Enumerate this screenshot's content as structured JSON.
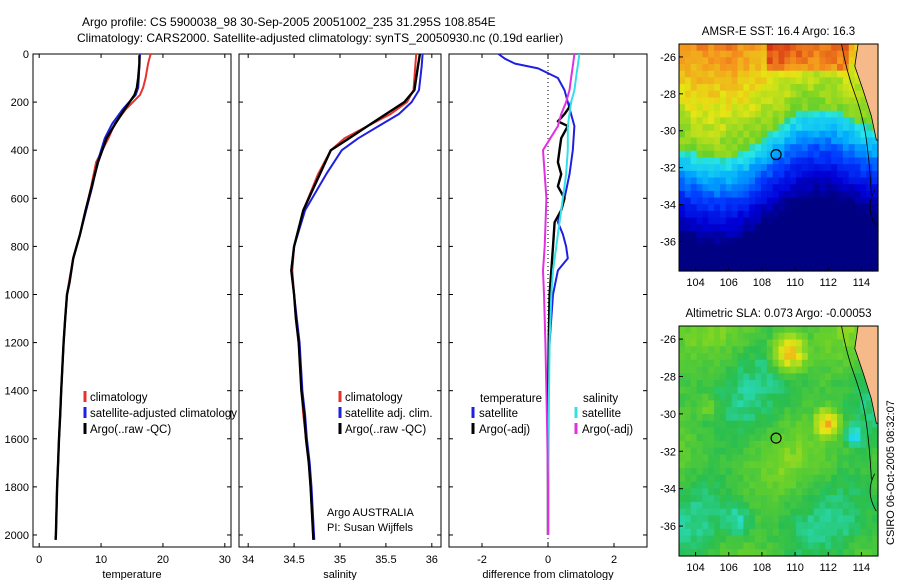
{
  "header": {
    "line1": "Argo profile: CS 5900038_98 30-Sep-2005 20051002_235 31.295S 108.854E",
    "line2": "Climatology: CARS2000. Satellite-adjusted climatology: synTS_20050930.nc (0.19d earlier)"
  },
  "side_label": "CSIRO 06-Oct-2005 08:32:07",
  "argo_info": {
    "line1": "Argo AUSTRALIA",
    "line2": "PI: Susan Wijffels"
  },
  "colors": {
    "red": "#e8322c",
    "blue": "#1f1fe0",
    "black": "#000000",
    "cyan": "#33e0e8",
    "magenta": "#e030e0"
  },
  "chart_data": [
    {
      "type": "line",
      "name": "temperature",
      "xlabel": "temperature",
      "xlim": [
        -1,
        31
      ],
      "ylim": [
        2050,
        0
      ],
      "y_inverted": true,
      "xticks": [
        "0",
        "10",
        "20",
        "30"
      ],
      "yticks": [
        "0",
        "200",
        "400",
        "600",
        "800",
        "1000",
        "1200",
        "1400",
        "1600",
        "1800",
        "2000"
      ],
      "legend": [
        "climatology",
        "satellite-adjusted climatology",
        "Argo(..raw -QC)"
      ],
      "series": [
        {
          "name": "climatology",
          "color": "red",
          "x": [
            18,
            17.6,
            17.2,
            16.8,
            16.3,
            14,
            12.2,
            11.2,
            9.2,
            8.4,
            7.5,
            6.6,
            5.5,
            4.8,
            4.5,
            4.2,
            3.95,
            3.75,
            3.55,
            3.4,
            3.2,
            3.05,
            2.9,
            2.8,
            2.75,
            2.7,
            2.65
          ],
          "y": [
            0,
            40,
            100,
            140,
            170,
            230,
            290,
            350,
            450,
            550,
            650,
            750,
            850,
            950,
            1000,
            1100,
            1200,
            1300,
            1400,
            1500,
            1600,
            1700,
            1800,
            1900,
            1950,
            2000,
            2020
          ]
        },
        {
          "name": "satellite-adjusted climatology",
          "color": "blue",
          "x": [
            16.3,
            16.2,
            16.1,
            16,
            15.6,
            13.5,
            11.8,
            10.6,
            9.4,
            8.6,
            7.6,
            6.6,
            5.5,
            4.9,
            4.5,
            4.2,
            3.95,
            3.75,
            3.55,
            3.4,
            3.2,
            3.05,
            2.9,
            2.8,
            2.75,
            2.7,
            2.65
          ],
          "y": [
            0,
            40,
            100,
            140,
            170,
            230,
            290,
            350,
            450,
            550,
            650,
            750,
            850,
            950,
            1000,
            1100,
            1200,
            1300,
            1400,
            1500,
            1600,
            1700,
            1800,
            1900,
            1950,
            2000,
            2020
          ]
        },
        {
          "name": "Argo(..raw -QC)",
          "color": "black",
          "x": [
            16.2,
            16.2,
            16,
            15.8,
            15.4,
            13.8,
            12.3,
            10.9,
            9.5,
            8.5,
            7.5,
            6.6,
            5.5,
            4.9,
            4.5,
            4.2,
            3.95,
            3.75,
            3.55,
            3.4,
            3.2,
            3.05,
            2.9,
            2.8,
            2.75,
            2.7,
            2.65
          ],
          "y": [
            5,
            40,
            100,
            140,
            170,
            230,
            290,
            350,
            450,
            550,
            650,
            750,
            850,
            950,
            1000,
            1100,
            1200,
            1300,
            1400,
            1500,
            1600,
            1700,
            1800,
            1900,
            1950,
            2000,
            2020
          ]
        }
      ]
    },
    {
      "type": "line",
      "name": "salinity",
      "xlabel": "salinity",
      "xlim": [
        33.9,
        36.1
      ],
      "ylim": [
        2050,
        0
      ],
      "y_inverted": true,
      "xticks": [
        "34",
        "34.5",
        "35",
        "35.5",
        "36"
      ],
      "legend": [
        "climatology",
        "satellite adj. clim.",
        "Argo(..raw -QC)"
      ],
      "series": [
        {
          "name": "climatology",
          "color": "red",
          "x": [
            35.83,
            35.82,
            35.8,
            35.73,
            35.55,
            35.3,
            35.05,
            34.9,
            34.76,
            34.6,
            34.5,
            34.48,
            34.5,
            34.52,
            34.55,
            34.58,
            34.6,
            34.63,
            34.66,
            34.68,
            34.7,
            34.71
          ],
          "y": [
            0,
            50,
            150,
            200,
            250,
            300,
            350,
            400,
            500,
            650,
            800,
            900,
            1000,
            1100,
            1200,
            1400,
            1500,
            1600,
            1700,
            1800,
            1950,
            2020
          ]
        },
        {
          "name": "satellite adj. clim.",
          "color": "blue",
          "x": [
            35.9,
            35.89,
            35.86,
            35.78,
            35.64,
            35.42,
            35.2,
            35.02,
            34.85,
            34.62,
            34.5,
            34.47,
            34.5,
            34.53,
            34.56,
            34.59,
            34.62,
            34.64,
            34.67,
            34.69,
            34.71,
            34.72
          ],
          "y": [
            0,
            50,
            150,
            200,
            250,
            300,
            350,
            400,
            500,
            650,
            800,
            900,
            1000,
            1100,
            1200,
            1400,
            1500,
            1600,
            1700,
            1800,
            1950,
            2020
          ]
        },
        {
          "name": "Argo(..raw -QC)",
          "color": "black",
          "x": [
            35.87,
            35.85,
            35.81,
            35.7,
            35.5,
            35.3,
            35.1,
            34.9,
            34.78,
            34.6,
            34.5,
            34.47,
            34.5,
            34.52,
            34.55,
            34.58,
            34.61,
            34.63,
            34.66,
            34.68,
            34.7,
            34.71
          ],
          "y": [
            0,
            50,
            150,
            200,
            250,
            300,
            350,
            400,
            500,
            650,
            800,
            900,
            1000,
            1100,
            1200,
            1400,
            1500,
            1600,
            1700,
            1800,
            1950,
            2020
          ]
        }
      ]
    },
    {
      "type": "line",
      "name": "difference",
      "xlabel": "difference from climatology",
      "xlim": [
        -3,
        3
      ],
      "ylim": [
        2050,
        0
      ],
      "y_inverted": true,
      "xticks": [
        "-2",
        "0",
        "2"
      ],
      "legend_headers": [
        "temperature",
        "salinity"
      ],
      "legend": [
        "satellite",
        "Argo(-adj)",
        "satellite",
        "Argo(-adj)"
      ],
      "series": [
        {
          "name": "temperature satellite",
          "color": "blue",
          "x": [
            -1.5,
            -1.3,
            -1.0,
            -0.3,
            0.3,
            0.5,
            0.6,
            0.7,
            0.8,
            0.75,
            0.65,
            0.5,
            0.3,
            0.45,
            0.55,
            0.6,
            0.3,
            0.15,
            0.05,
            0,
            0,
            0,
            0
          ],
          "y": [
            0,
            20,
            40,
            60,
            100,
            150,
            200,
            250,
            300,
            400,
            500,
            600,
            700,
            750,
            800,
            850,
            900,
            1000,
            1200,
            1400,
            1600,
            1800,
            2000
          ]
        },
        {
          "name": "temperature Argo(-adj)",
          "color": "black",
          "x": [
            0.7,
            0.65,
            0.5,
            0.3,
            0.6,
            0.4,
            0.35,
            0.3,
            0.4,
            0.3,
            0.5,
            0.4,
            0.2,
            0.15,
            0.1,
            0.05,
            0.02,
            0,
            0
          ],
          "y": [
            200,
            220,
            250,
            280,
            300,
            350,
            400,
            450,
            500,
            550,
            600,
            650,
            700,
            800,
            900,
            1000,
            1200,
            1500,
            2000
          ]
        },
        {
          "name": "salinity satellite",
          "color": "cyan",
          "x": [
            0.95,
            0.9,
            0.85,
            0.8,
            0.7,
            0.6,
            0.6,
            0.55,
            0.45,
            0.35,
            0.25,
            0.15,
            0.1,
            0.05,
            0.03,
            0.02,
            0.01,
            0.01
          ],
          "y": [
            0,
            50,
            100,
            150,
            200,
            300,
            400,
            500,
            600,
            700,
            800,
            900,
            1000,
            1200,
            1400,
            1600,
            1800,
            2000
          ]
        },
        {
          "name": "salinity Argo(-adj)",
          "color": "magenta",
          "x": [
            0.8,
            0.75,
            0.7,
            0.65,
            0.55,
            0.4,
            0.3,
            -0.15,
            -0.1,
            -0.05,
            -0.1,
            -0.15,
            -0.12,
            -0.08,
            -0.05,
            -0.02,
            0,
            0
          ],
          "y": [
            0,
            50,
            100,
            150,
            200,
            250,
            300,
            400,
            500,
            600,
            800,
            900,
            1000,
            1200,
            1400,
            1600,
            1800,
            2000
          ]
        }
      ]
    },
    {
      "type": "heatmap",
      "name": "sst",
      "title": "AMSR-E SST: 16.4 Argo: 16.3",
      "xlim": [
        103,
        115
      ],
      "ylim": [
        -37.6,
        -25.3
      ],
      "xticks": [
        "104",
        "106",
        "108",
        "110",
        "112",
        "114"
      ],
      "yticks": [
        "-26",
        "-28",
        "-30",
        "-32",
        "-34",
        "-36"
      ],
      "marker": {
        "lon": 108.854,
        "lat": -31.295
      }
    },
    {
      "type": "heatmap",
      "name": "sla",
      "title": "Altimetric SLA: 0.073 Argo: -0.00053",
      "xlim": [
        103,
        115
      ],
      "ylim": [
        -37.6,
        -25.3
      ],
      "xticks": [
        "104",
        "106",
        "108",
        "110",
        "112",
        "114"
      ],
      "yticks": [
        "-26",
        "-28",
        "-30",
        "-32",
        "-34",
        "-36"
      ],
      "marker": {
        "lon": 108.854,
        "lat": -31.295
      }
    }
  ]
}
